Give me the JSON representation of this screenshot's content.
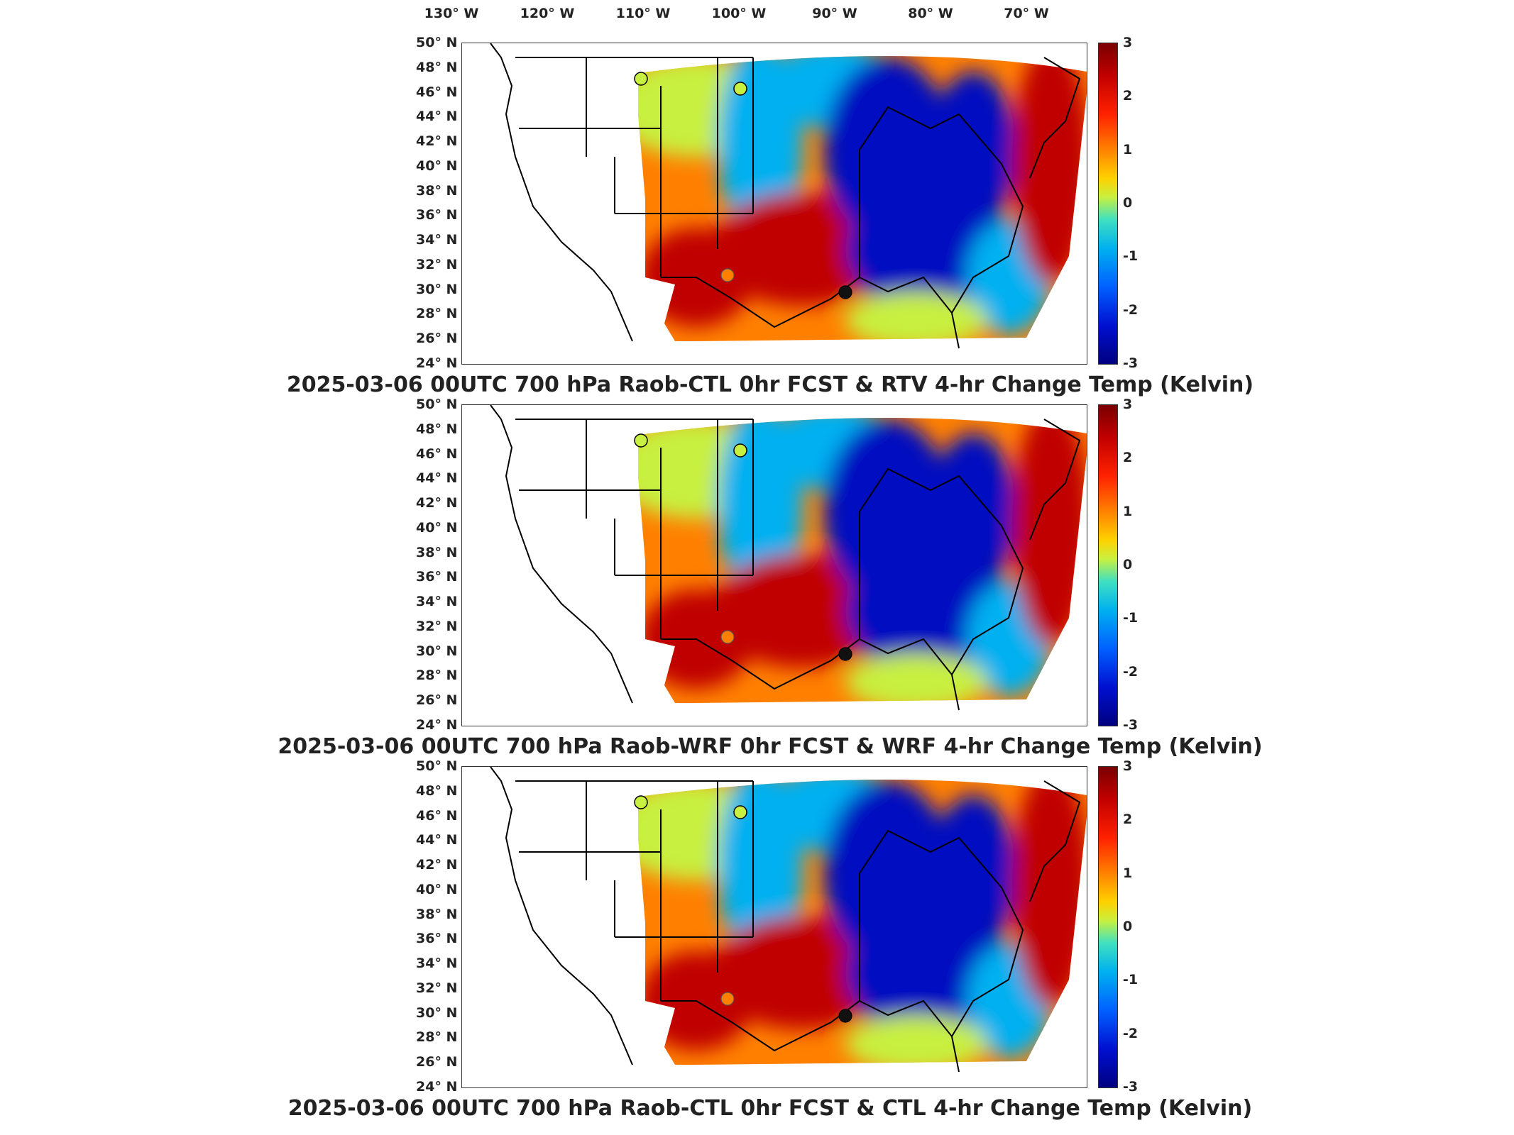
{
  "longitude_labels": [
    "130° W",
    "120° W",
    "110° W",
    "100° W",
    "90° W",
    "80° W",
    "70° W"
  ],
  "latitude_labels": [
    "50° N",
    "48° N",
    "46° N",
    "44° N",
    "42° N",
    "40° N",
    "38° N",
    "36° N",
    "34° N",
    "32° N",
    "30° N",
    "28° N",
    "26° N",
    "24° N"
  ],
  "colorbar": {
    "ticks": [
      "3",
      "2",
      "1",
      "0",
      "-1",
      "-2",
      "-3"
    ],
    "colormap": "jet",
    "range": [
      -3,
      3
    ]
  },
  "panels": [
    {
      "title": "2025-03-06 00UTC 700 hPa Raob-CTL 0hr FCST & RTV 4-hr Change Temp (Kelvin)"
    },
    {
      "title": "2025-03-06 00UTC 700 hPa Raob-WRF 0hr FCST & WRF 4-hr Change Temp (Kelvin)"
    },
    {
      "title": "2025-03-06 00UTC 700 hPa Raob-CTL 0hr FCST & CTL 4-hr Change Temp (Kelvin)"
    }
  ],
  "colors": {
    "cold": "#0010c0",
    "cool": "#00b0f0",
    "neutral": "#c8f040",
    "warm": "#ff8000",
    "hot": "#c00000"
  }
}
